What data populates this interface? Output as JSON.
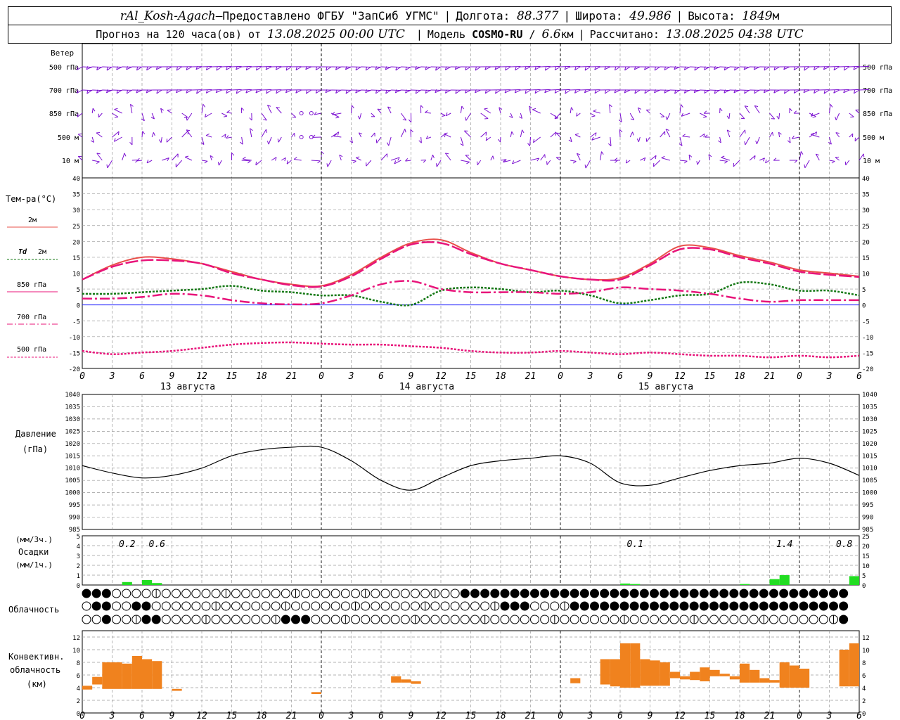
{
  "header": {
    "station": "rAl_Kosh-Agach",
    "dash": " – ",
    "provider": "Предоставлено ФГБУ \"ЗапСиб УГМС\"",
    "sep": "|",
    "lon_label": "Долгота:",
    "lon_value": "88.377",
    "lat_label": "Широта:",
    "lat_value": "49.986",
    "alt_label": "Высота:",
    "alt_value": "1849",
    "alt_unit": "м",
    "forecast_label": "Прогноз на 120 часа(ов)",
    "from_label": "от",
    "forecast_start": "13.08.2025 00:00 UTC",
    "model_label": "Модель",
    "model_name": "COSMO-RU",
    "model_slash": "/",
    "model_res": "6.6",
    "model_res_unit": "км",
    "calc_label": "Рассчитано:",
    "calc_time": "13.08.2025 04:38 UTC"
  },
  "colors": {
    "wind": "#7b0fd1",
    "t2m": "#e8504a",
    "td2m": "#147814",
    "t850": "#e8147a",
    "t700": "#e8147a",
    "t500": "#e8147a",
    "pressure": "#000000",
    "precip": "#22dd22",
    "convective": "#f0821e",
    "zero_line": "#2020ff",
    "grid": "#9a9a9a"
  },
  "labels": {
    "wind_title": "Ветер",
    "wind_levels": [
      "500 гПа",
      "700 гПа",
      "850 гПа",
      "500 м",
      "10 м"
    ],
    "temp_title": "Тем-ра(°C)",
    "legend": {
      "t2m": "2м",
      "td_symbol": "Td",
      "td_level": "2м",
      "t850": "850 гПа",
      "t700": "700 гПа",
      "t500": "500 гПа"
    },
    "pressure_title": "Давление",
    "pressure_unit": "(гПа)",
    "precip_top": "(мм/3ч.)",
    "precip_title": "Осадки",
    "precip_bottom": "(мм/1ч.)",
    "cloud_title": "Облачность",
    "conv_title1": "Конвективн.",
    "conv_title2": "облачность",
    "conv_unit": "(км)"
  },
  "chart_data": {
    "type": "line",
    "hours_label_sequence": [
      "0",
      "3",
      "6",
      "9",
      "12",
      "15",
      "18",
      "21",
      "0",
      "3",
      "6",
      "9",
      "12",
      "15",
      "18",
      "21",
      "0",
      "3",
      "6",
      "9",
      "12",
      "15",
      "18",
      "21",
      "0",
      "3",
      "6"
    ],
    "day_labels": [
      "13 августа",
      "14 августа",
      "15 августа"
    ],
    "temperature": {
      "ylim": [
        -20,
        40
      ],
      "ticks": [
        "40",
        "35",
        "30",
        "25",
        "20",
        "15",
        "10",
        "5",
        "0",
        "-5",
        "-10",
        "-15",
        "-20"
      ],
      "series": [
        {
          "key": "t2m",
          "hours": [
            0,
            3,
            6,
            9,
            12,
            15,
            18,
            21,
            24,
            27,
            30,
            33,
            36,
            39,
            42,
            45,
            48,
            51,
            54,
            57,
            60,
            63,
            66,
            69,
            72,
            75,
            78
          ],
          "values": [
            8,
            12.5,
            15,
            14.5,
            13,
            10.5,
            8,
            6.5,
            6,
            9.5,
            15,
            19.5,
            20.5,
            16.5,
            13,
            11,
            9,
            8,
            8.5,
            13,
            18.5,
            18,
            15.5,
            13.5,
            11,
            10,
            9
          ]
        },
        {
          "key": "t850",
          "hours": [
            0,
            3,
            6,
            9,
            12,
            15,
            18,
            21,
            24,
            27,
            30,
            33,
            36,
            39,
            42,
            45,
            48,
            51,
            54,
            57,
            60,
            63,
            66,
            69,
            72,
            75,
            78
          ],
          "values": [
            8,
            12,
            14,
            14,
            13,
            10,
            8,
            6.2,
            5.8,
            9,
            14.5,
            19,
            19.5,
            16,
            13,
            11,
            9,
            8,
            8,
            12.5,
            17.5,
            17.5,
            15,
            13,
            10.5,
            9.5,
            8.8
          ]
        },
        {
          "key": "td2m",
          "hours": [
            0,
            3,
            6,
            9,
            12,
            15,
            18,
            21,
            24,
            27,
            30,
            33,
            36,
            39,
            42,
            45,
            48,
            51,
            54,
            57,
            60,
            63,
            66,
            69,
            72,
            75,
            78
          ],
          "values": [
            3.5,
            3.5,
            4,
            4.5,
            5,
            6,
            4.5,
            4,
            3,
            3,
            1,
            0,
            4.5,
            5.5,
            5,
            4,
            4.5,
            3,
            0.5,
            1.5,
            3,
            3.5,
            7,
            6.5,
            4.5,
            4.5,
            3
          ]
        },
        {
          "key": "t700",
          "hours": [
            0,
            3,
            6,
            9,
            12,
            15,
            18,
            21,
            24,
            27,
            30,
            33,
            36,
            39,
            42,
            45,
            48,
            51,
            54,
            57,
            60,
            63,
            66,
            69,
            72,
            75,
            78
          ],
          "values": [
            2,
            2,
            2.5,
            3.5,
            3,
            1.5,
            0.5,
            0.2,
            0.5,
            3,
            6.5,
            7.5,
            5,
            4,
            4,
            4,
            3.5,
            4,
            5.5,
            5,
            4.5,
            3.5,
            2,
            1,
            1.5,
            1.5,
            1.5
          ]
        },
        {
          "key": "t500",
          "hours": [
            0,
            3,
            6,
            9,
            12,
            15,
            18,
            21,
            24,
            27,
            30,
            33,
            36,
            39,
            42,
            45,
            48,
            51,
            54,
            57,
            60,
            63,
            66,
            69,
            72,
            75,
            78
          ],
          "values": [
            -14.5,
            -15.5,
            -15,
            -14.5,
            -13.5,
            -12.5,
            -12,
            -11.8,
            -12.2,
            -12.5,
            -12.5,
            -13,
            -13.5,
            -14.5,
            -15,
            -15,
            -14.5,
            -15,
            -15.5,
            -15,
            -15.5,
            -16,
            -16,
            -16.5,
            -16,
            -16.5,
            -16
          ]
        }
      ]
    },
    "pressure": {
      "ylim": [
        985,
        1040
      ],
      "ticks": [
        "1040",
        "1035",
        "1030",
        "1025",
        "1020",
        "1015",
        "1010",
        "1005",
        "1000",
        "995",
        "990",
        "985"
      ],
      "hours": [
        0,
        3,
        6,
        9,
        12,
        15,
        18,
        21,
        24,
        27,
        30,
        33,
        36,
        39,
        42,
        45,
        48,
        51,
        54,
        57,
        60,
        63,
        66,
        69,
        72,
        75,
        78
      ],
      "values": [
        1011,
        1008,
        1006,
        1007,
        1010,
        1015,
        1017.5,
        1018.5,
        1018.5,
        1013,
        1005,
        1001,
        1006,
        1011,
        1013,
        1014,
        1015,
        1012,
        1004,
        1003,
        1006,
        1009,
        1011,
        1012,
        1014,
        1012,
        1007
      ]
    },
    "precipitation": {
      "ticks": [
        "5",
        "4",
        "3",
        "2",
        "1",
        "0"
      ],
      "ticks_right": [
        "25",
        "20",
        "15",
        "10",
        "5",
        "0"
      ],
      "totals_3h": [
        {
          "hour": 4.5,
          "label": "0.2"
        },
        {
          "hour": 7.5,
          "label": "0.6"
        },
        {
          "hour": 55.5,
          "label": "0.1"
        },
        {
          "hour": 70.5,
          "label": "1.4"
        },
        {
          "hour": 76.5,
          "label": "0.8"
        }
      ],
      "hourly": [
        {
          "hour": 5,
          "value": 0.3
        },
        {
          "hour": 7,
          "value": 0.5
        },
        {
          "hour": 8,
          "value": 0.2
        },
        {
          "hour": 55,
          "value": 0.15
        },
        {
          "hour": 56,
          "value": 0.1
        },
        {
          "hour": 67,
          "value": 0.1
        },
        {
          "hour": 70,
          "value": 0.6
        },
        {
          "hour": 71,
          "value": 1.0
        },
        {
          "hour": 78,
          "value": 0.9
        }
      ]
    },
    "clouds": {
      "rows": 3,
      "fraction_per_hour_rows": [
        "11100000000000000000000000000000000000111111111111111111111111111111111111111",
        "01100110000000000000000000000000000000000011100001111111111111111111111111111",
        "00100011000000000000111000000000000000000000000000000000000000000000000000001"
      ]
    },
    "convective": {
      "ylim": [
        0,
        13
      ],
      "ticks": [
        "12",
        "10",
        "8",
        "6",
        "4",
        "2",
        "0"
      ],
      "bars": [
        {
          "hour": 1,
          "base": 3.7,
          "top": 4.3
        },
        {
          "hour": 2,
          "base": 4.5,
          "top": 5.7
        },
        {
          "hour": 3,
          "base": 3.8,
          "top": 8.0
        },
        {
          "hour": 4,
          "base": 3.8,
          "top": 8.0
        },
        {
          "hour": 5,
          "base": 3.8,
          "top": 7.8
        },
        {
          "hour": 6,
          "base": 3.8,
          "top": 9.0
        },
        {
          "hour": 7,
          "base": 3.8,
          "top": 8.5
        },
        {
          "hour": 8,
          "base": 3.8,
          "top": 8.2
        },
        {
          "hour": 10,
          "base": 3.5,
          "top": 3.8
        },
        {
          "hour": 24,
          "base": 3.0,
          "top": 3.3
        },
        {
          "hour": 32,
          "base": 4.8,
          "top": 5.8
        },
        {
          "hour": 33,
          "base": 4.8,
          "top": 5.3
        },
        {
          "hour": 34,
          "base": 4.6,
          "top": 5.0
        },
        {
          "hour": 50,
          "base": 4.7,
          "top": 5.5
        },
        {
          "hour": 53,
          "base": 4.5,
          "top": 8.5
        },
        {
          "hour": 54,
          "base": 4.2,
          "top": 8.5
        },
        {
          "hour": 55,
          "base": 4.0,
          "top": 11.0
        },
        {
          "hour": 56,
          "base": 4.0,
          "top": 11.0
        },
        {
          "hour": 57,
          "base": 4.3,
          "top": 8.5
        },
        {
          "hour": 58,
          "base": 4.3,
          "top": 8.3
        },
        {
          "hour": 59,
          "base": 4.3,
          "top": 8.0
        },
        {
          "hour": 60,
          "base": 5.5,
          "top": 6.5
        },
        {
          "hour": 61,
          "base": 5.3,
          "top": 5.8
        },
        {
          "hour": 62,
          "base": 5.2,
          "top": 6.5
        },
        {
          "hour": 63,
          "base": 5.0,
          "top": 7.2
        },
        {
          "hour": 64,
          "base": 5.8,
          "top": 6.8
        },
        {
          "hour": 65,
          "base": 5.8,
          "top": 6.2
        },
        {
          "hour": 66,
          "base": 5.3,
          "top": 5.8
        },
        {
          "hour": 67,
          "base": 4.8,
          "top": 7.8
        },
        {
          "hour": 68,
          "base": 4.8,
          "top": 6.8
        },
        {
          "hour": 69,
          "base": 4.8,
          "top": 5.5
        },
        {
          "hour": 70,
          "base": 4.8,
          "top": 5.2
        },
        {
          "hour": 71,
          "base": 4.0,
          "top": 8.0
        },
        {
          "hour": 72,
          "base": 4.0,
          "top": 7.5
        },
        {
          "hour": 73,
          "base": 4.0,
          "top": 7.0
        },
        {
          "hour": 77,
          "base": 4.2,
          "top": 10.0
        },
        {
          "hour": 78,
          "base": 4.2,
          "top": 11.0
        }
      ]
    },
    "wind": {
      "note_levels": [
        "500 гПа",
        "700 гПа",
        "850 гПа",
        "500 м",
        "10 м"
      ]
    }
  }
}
